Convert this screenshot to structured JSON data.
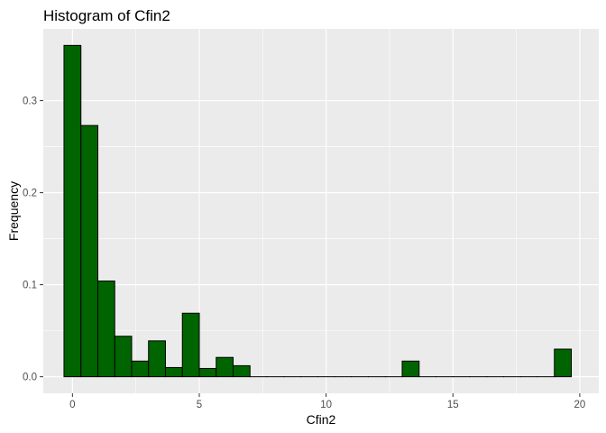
{
  "chart_data": {
    "type": "bar",
    "title": "Histogram of Cfin2",
    "xlabel": "Cfin2",
    "ylabel": "Frequency",
    "xlim": [
      -1.15,
      20.75
    ],
    "ylim": [
      -0.018,
      0.378
    ],
    "x_ticks": [
      0,
      5,
      10,
      15,
      20
    ],
    "x_tick_labels": [
      "0",
      "5",
      "10",
      "15",
      "20"
    ],
    "y_ticks": [
      0.0,
      0.1,
      0.2,
      0.3
    ],
    "y_tick_labels": [
      "0.0",
      "0.1",
      "0.2",
      "0.3"
    ],
    "bin_width": 0.667,
    "bin_centers": [
      0,
      0.667,
      1.333,
      2.0,
      2.667,
      3.333,
      4.0,
      4.667,
      5.333,
      6.0,
      6.667,
      7.333,
      8.0,
      8.667,
      9.333,
      10.0,
      10.667,
      11.333,
      12.0,
      12.667,
      13.333,
      14.0,
      14.667,
      15.333,
      16.0,
      16.667,
      17.333,
      18.0,
      18.667,
      19.333
    ],
    "values": [
      0.36,
      0.273,
      0.104,
      0.044,
      0.017,
      0.039,
      0.01,
      0.069,
      0.009,
      0.021,
      0.012,
      0,
      0,
      0,
      0,
      0,
      0,
      0,
      0,
      0,
      0.017,
      0,
      0,
      0,
      0,
      0,
      0,
      0,
      0,
      0.03
    ],
    "grid": true,
    "bar_fill": "#006400",
    "bar_stroke": "#000000",
    "panel_background": "#ebebeb",
    "grid_color": "#ffffff"
  }
}
